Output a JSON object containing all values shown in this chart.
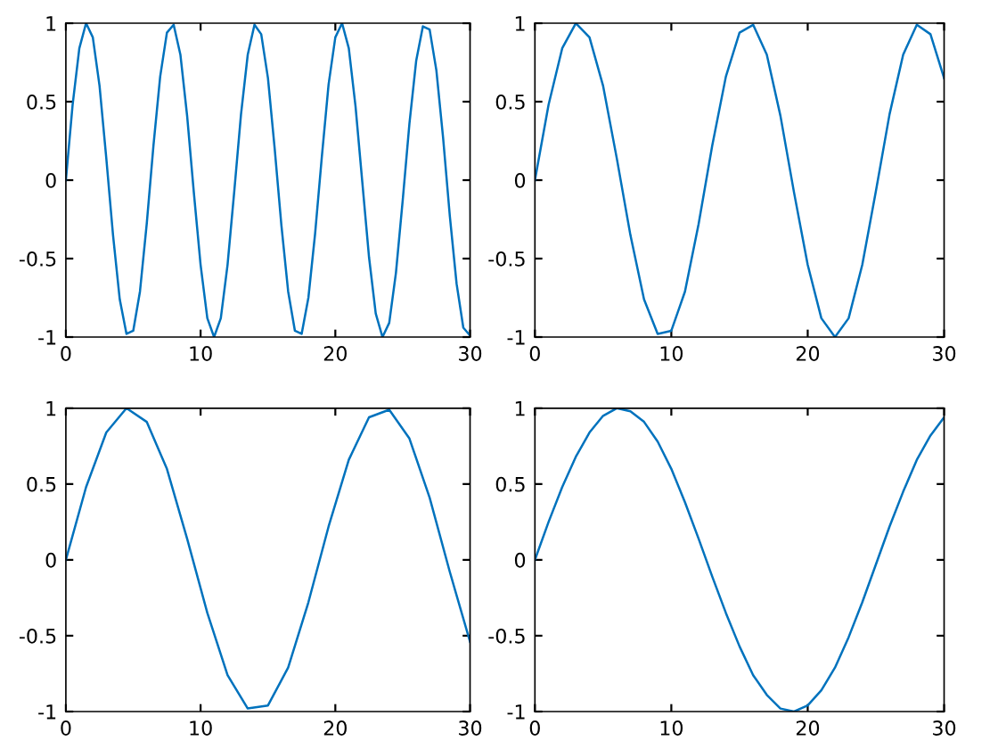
{
  "chart_data": [
    {
      "type": "line",
      "x": [
        0,
        0.5,
        1,
        1.5,
        2,
        2.5,
        3,
        3.5,
        4,
        4.5,
        5,
        5.5,
        6,
        6.5,
        7,
        7.5,
        8,
        8.5,
        9,
        9.5,
        10,
        10.5,
        11,
        11.5,
        12,
        12.5,
        13,
        13.5,
        14,
        14.5,
        15,
        15.5,
        16,
        16.5,
        17,
        17.5,
        18,
        18.5,
        19,
        19.5,
        20,
        20.5,
        21,
        21.5,
        22,
        22.5,
        23,
        23.5,
        24,
        24.5,
        25,
        25.5,
        26,
        26.5,
        27,
        27.5,
        28,
        28.5,
        29,
        29.5,
        30
      ],
      "series": [
        {
          "color": "#0072bd",
          "values": [
            0,
            0.48,
            0.84,
            1.0,
            0.91,
            0.6,
            0.14,
            -0.35,
            -0.76,
            -0.98,
            -0.96,
            -0.71,
            -0.28,
            0.22,
            0.66,
            0.94,
            0.99,
            0.8,
            0.41,
            -0.08,
            -0.54,
            -0.88,
            -1.0,
            -0.88,
            -0.54,
            -0.07,
            0.42,
            0.8,
            0.99,
            0.93,
            0.65,
            0.2,
            -0.29,
            -0.71,
            -0.96,
            -0.98,
            -0.75,
            -0.34,
            0.15,
            0.61,
            0.91,
            1.0,
            0.84,
            0.47,
            -0.01,
            -0.49,
            -0.85,
            -1.0,
            -0.91,
            -0.59,
            -0.13,
            0.36,
            0.76,
            0.98,
            0.96,
            0.7,
            0.27,
            -0.23,
            -0.66,
            -0.94,
            -0.99
          ]
        }
      ],
      "xlim": [
        0,
        30
      ],
      "xticks": [
        0,
        10,
        20,
        30
      ],
      "ylim": [
        -1,
        1
      ],
      "yticks": [
        -1,
        -0.5,
        0,
        0.5,
        1
      ],
      "grid": false
    },
    {
      "type": "line",
      "x": [
        0,
        1,
        2,
        3,
        4,
        5,
        6,
        7,
        8,
        9,
        10,
        11,
        12,
        13,
        14,
        15,
        16,
        17,
        18,
        19,
        20,
        21,
        22,
        23,
        24,
        25,
        26,
        27,
        28,
        29,
        30
      ],
      "series": [
        {
          "color": "#0072bd",
          "values": [
            0,
            0.48,
            0.84,
            1.0,
            0.91,
            0.6,
            0.14,
            -0.35,
            -0.76,
            -0.98,
            -0.96,
            -0.71,
            -0.28,
            0.22,
            0.66,
            0.94,
            0.99,
            0.8,
            0.41,
            -0.08,
            -0.54,
            -0.88,
            -1.0,
            -0.88,
            -0.54,
            -0.07,
            0.42,
            0.8,
            0.99,
            0.93,
            0.65
          ]
        }
      ],
      "xlim": [
        0,
        30
      ],
      "xticks": [
        0,
        10,
        20,
        30
      ],
      "ylim": [
        -1,
        1
      ],
      "yticks": [
        -1,
        -0.5,
        0,
        0.5,
        1
      ],
      "grid": false
    },
    {
      "type": "line",
      "x": [
        0,
        1.5,
        3,
        4.5,
        6,
        7.5,
        9,
        10.5,
        12,
        13.5,
        15,
        16.5,
        18,
        19.5,
        21,
        22.5,
        24,
        25.5,
        27,
        28.5,
        30
      ],
      "series": [
        {
          "color": "#0072bd",
          "values": [
            0,
            0.48,
            0.84,
            1.0,
            0.91,
            0.6,
            0.14,
            -0.35,
            -0.76,
            -0.98,
            -0.96,
            -0.71,
            -0.28,
            0.22,
            0.66,
            0.94,
            0.99,
            0.8,
            0.41,
            -0.08,
            -0.54
          ]
        }
      ],
      "xlim": [
        0,
        30
      ],
      "xticks": [
        0,
        10,
        20,
        30
      ],
      "ylim": [
        -1,
        1
      ],
      "yticks": [
        -1,
        -0.5,
        0,
        0.5,
        1
      ],
      "grid": false
    },
    {
      "type": "line",
      "x": [
        0,
        1,
        2,
        3,
        4,
        5,
        6,
        7,
        8,
        9,
        10,
        11,
        12,
        13,
        14,
        15,
        16,
        17,
        18,
        19,
        20,
        21,
        22,
        23,
        24,
        25,
        26,
        27,
        28,
        29,
        30
      ],
      "series": [
        {
          "color": "#0072bd",
          "values": [
            0,
            0.25,
            0.48,
            0.68,
            0.84,
            0.95,
            1.0,
            0.98,
            0.91,
            0.78,
            0.6,
            0.38,
            0.14,
            -0.11,
            -0.35,
            -0.57,
            -0.76,
            -0.89,
            -0.98,
            -1.0,
            -0.96,
            -0.86,
            -0.71,
            -0.51,
            -0.28,
            -0.03,
            0.22,
            0.45,
            0.66,
            0.82,
            0.94
          ]
        }
      ],
      "xlim": [
        0,
        30
      ],
      "xticks": [
        0,
        10,
        20,
        30
      ],
      "ylim": [
        -1,
        1
      ],
      "yticks": [
        -1,
        -0.5,
        0,
        0.5,
        1
      ],
      "grid": false
    }
  ]
}
